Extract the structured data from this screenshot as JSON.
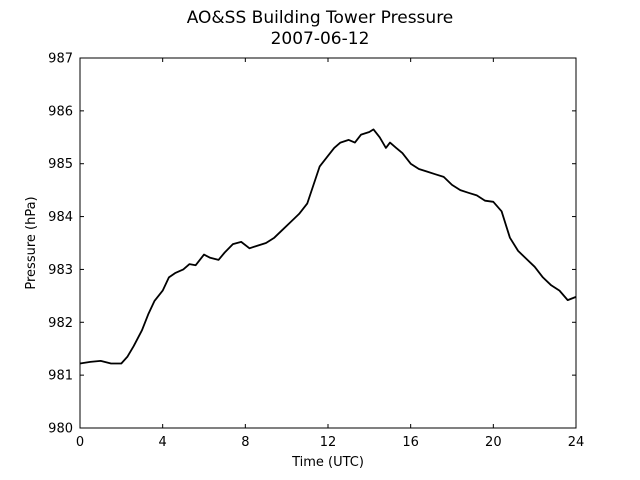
{
  "chart_data": {
    "type": "line",
    "title": "AO&SS Building Tower Pressure",
    "subtitle": "2007-06-12",
    "xlabel": "Time (UTC)",
    "ylabel": "Pressure (hPa)",
    "xlim": [
      0,
      24
    ],
    "ylim": [
      980,
      987
    ],
    "x_ticks": [
      0,
      4,
      8,
      12,
      16,
      20,
      24
    ],
    "y_ticks": [
      980,
      981,
      982,
      983,
      984,
      985,
      986,
      987
    ],
    "grid": false,
    "line_color": "#000000",
    "series": [
      {
        "x": [
          0.0,
          0.5,
          1.0,
          1.5,
          2.0,
          2.3,
          2.6,
          3.0,
          3.3,
          3.6,
          4.0,
          4.3,
          4.6,
          5.0,
          5.3,
          5.6,
          6.0,
          6.3,
          6.7,
          7.0,
          7.4,
          7.8,
          8.2,
          8.6,
          9.0,
          9.4,
          9.8,
          10.2,
          10.6,
          11.0,
          11.3,
          11.6,
          12.0,
          12.3,
          12.6,
          13.0,
          13.3,
          13.6,
          14.0,
          14.2,
          14.5,
          14.8,
          15.0,
          15.3,
          15.6,
          16.0,
          16.4,
          16.8,
          17.2,
          17.6,
          18.0,
          18.4,
          18.8,
          19.2,
          19.6,
          20.0,
          20.4,
          20.8,
          21.2,
          21.6,
          22.0,
          22.4,
          22.8,
          23.2,
          23.6,
          24.0
        ],
        "values": [
          981.22,
          981.25,
          981.27,
          981.22,
          981.22,
          981.35,
          981.55,
          981.85,
          982.15,
          982.4,
          982.6,
          982.85,
          982.93,
          983.0,
          983.1,
          983.08,
          983.28,
          983.22,
          983.18,
          983.32,
          983.48,
          983.52,
          983.4,
          983.45,
          983.5,
          983.6,
          983.75,
          983.9,
          984.05,
          984.25,
          984.6,
          984.95,
          985.15,
          985.3,
          985.4,
          985.45,
          985.4,
          985.55,
          985.6,
          985.65,
          985.5,
          985.3,
          985.4,
          985.3,
          985.2,
          985.0,
          984.9,
          984.85,
          984.8,
          984.75,
          984.6,
          984.5,
          984.45,
          984.4,
          984.3,
          984.28,
          984.1,
          983.6,
          983.35,
          983.2,
          983.05,
          982.85,
          982.7,
          982.6,
          982.42,
          982.48
        ]
      }
    ]
  }
}
